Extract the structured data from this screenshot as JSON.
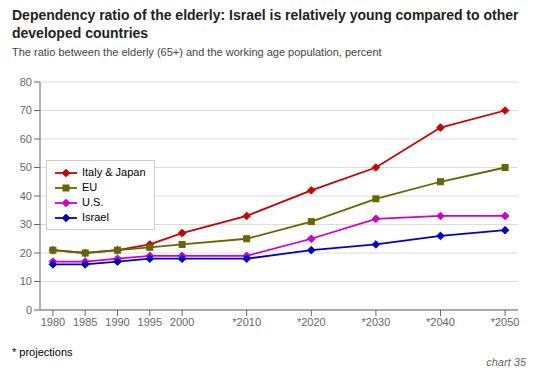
{
  "chart_data": {
    "type": "line",
    "title": "Dependency ratio of the elderly: Israel is relatively young compared to other developed countries",
    "subtitle": "The ratio between the elderly (65+) and the working age population, percent",
    "x": [
      1980,
      1985,
      1990,
      1995,
      2000,
      2010,
      2020,
      2030,
      2040,
      2050
    ],
    "xlim": [
      1978,
      2052
    ],
    "xticks": [
      1980,
      1985,
      1990,
      1995,
      2000,
      {
        "value": 2010,
        "label": "*2010"
      },
      {
        "value": 2020,
        "label": "*2020"
      },
      {
        "value": 2030,
        "label": "*2030"
      },
      {
        "value": 2040,
        "label": "*2040"
      },
      {
        "value": 2050,
        "label": "*2050"
      }
    ],
    "ylim": [
      0,
      80
    ],
    "yticks": [
      0,
      10,
      20,
      30,
      40,
      50,
      60,
      70,
      80
    ],
    "series": [
      {
        "name": "Italy & Japan",
        "color": "#cc0000",
        "marker": "diamond",
        "values": [
          21,
          20,
          21,
          23,
          27,
          33,
          42,
          50,
          64,
          70
        ]
      },
      {
        "name": "EU",
        "color": "#666600",
        "marker": "square",
        "values": [
          21,
          20,
          21,
          22,
          23,
          25,
          31,
          39,
          45,
          50
        ]
      },
      {
        "name": "U.S.",
        "color": "#cc00cc",
        "marker": "diamond",
        "values": [
          17,
          17,
          18,
          19,
          19,
          19,
          25,
          32,
          33,
          33
        ]
      },
      {
        "name": "Israel",
        "color": "#0000cc",
        "marker": "diamond",
        "values": [
          16,
          16,
          17,
          18,
          18,
          18,
          21,
          23,
          26,
          28
        ]
      }
    ],
    "grid": true,
    "legend": "upper left",
    "annotations": [
      "* projections",
      "chart 35"
    ]
  }
}
